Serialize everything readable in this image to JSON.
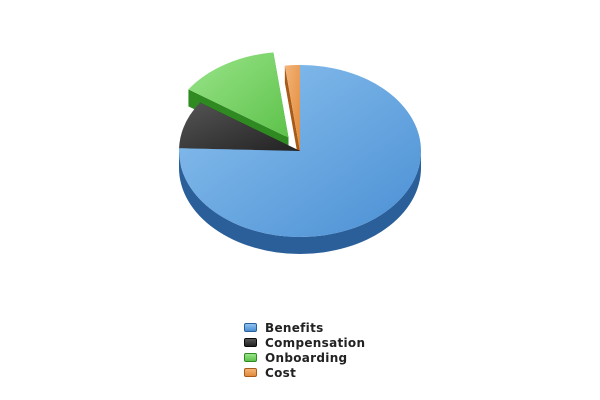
{
  "chart_data": {
    "type": "pie",
    "style": "3d-exploded",
    "title": "",
    "legend_position": "bottom",
    "slices": [
      {
        "label": "Benefits",
        "value": 75.5,
        "color": "#4a8fd4",
        "dark": "#2a5f9a",
        "light": "#8ec3ef",
        "exploded": false
      },
      {
        "label": "Compensation",
        "value": 9.0,
        "color": "#222222",
        "dark": "#0a0a0a",
        "light": "#555555",
        "exploded": false
      },
      {
        "label": "Onboarding",
        "value": 13.5,
        "color": "#5dc24a",
        "dark": "#2f8a22",
        "light": "#9ae48a",
        "exploded": true
      },
      {
        "label": "Cost",
        "value": 2.0,
        "color": "#e08a3a",
        "dark": "#a85a18",
        "light": "#f4b478",
        "exploded": false
      }
    ]
  }
}
